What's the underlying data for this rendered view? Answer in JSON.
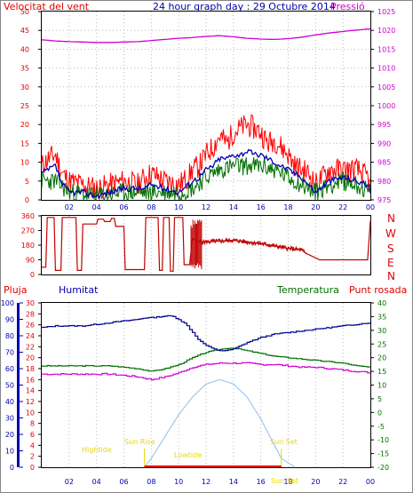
{
  "header": {
    "wind_title": "Velocitat del vent",
    "graph_title": "24 hour graph day : 29 Octubre 2014",
    "pressure_title": "Pressió"
  },
  "labels": {
    "pluja": "Pluja",
    "humitat": "Humitat",
    "temperatura": "Temperatura",
    "punt_rosada": "Punt rosada"
  },
  "colors": {
    "wind_gust": "#ff0000",
    "wind_avg": "#0000b0",
    "wind_low": "#007000",
    "pressure": "#d000d0",
    "direction": "#c00000",
    "humidity": "#000090",
    "temperature": "#007000",
    "dewpoint": "#d000d0",
    "solar": "#a0c8f0",
    "rain": "#ff0000",
    "sun_labels": "#e8d800",
    "axis_red": "#e00000",
    "axis_blue": "#0000b0",
    "axis_green": "#007000",
    "axis_magenta": "#d000d0"
  },
  "chart_data": [
    {
      "type": "line",
      "name": "wind_pressure",
      "x_tick_labels": [
        "02",
        "04",
        "06",
        "08",
        "10",
        "12",
        "14",
        "16",
        "18",
        "20",
        "22",
        "00"
      ],
      "ylim_left": [
        0,
        50
      ],
      "y_ticks_left": [
        "0",
        "5",
        "10",
        "15",
        "20",
        "25",
        "30",
        "35",
        "40",
        "45",
        "50"
      ],
      "ylim_right": [
        975,
        1025
      ],
      "y_ticks_right": [
        "975",
        "980",
        "985",
        "990",
        "995",
        "1000",
        "1005",
        "1010",
        "1015",
        "1020",
        "1025"
      ],
      "pressure_series": {
        "x": [
          0,
          1,
          2,
          3,
          4,
          5,
          6,
          7,
          8,
          9,
          10,
          11,
          12,
          13,
          14,
          15,
          16,
          17,
          18,
          19,
          20,
          21,
          22,
          23,
          24
        ],
        "y": [
          1017.5,
          1017.2,
          1017.0,
          1016.9,
          1016.8,
          1016.8,
          1016.9,
          1017.0,
          1017.3,
          1017.6,
          1017.9,
          1018.1,
          1018.4,
          1018.6,
          1018.3,
          1017.9,
          1017.7,
          1017.6,
          1017.8,
          1018.2,
          1018.8,
          1019.3,
          1019.7,
          1020.1,
          1020.4
        ]
      },
      "wind_gust_profile": {
        "x": [
          0,
          0.5,
          1,
          1.5,
          2,
          3,
          4,
          5,
          6,
          7,
          7.5,
          8,
          9,
          10,
          10.7,
          11,
          11.5,
          12,
          12.5,
          13,
          13.5,
          14,
          14.5,
          15,
          15.5,
          16,
          16.5,
          17,
          17.5,
          18,
          18.5,
          19,
          19.5,
          20,
          21,
          22,
          23,
          23.8,
          24
        ],
        "y": [
          9,
          11,
          12,
          7,
          5,
          4,
          3,
          4,
          5,
          4,
          6,
          7,
          5,
          4,
          6,
          8,
          9,
          12,
          14,
          17,
          15,
          18,
          19,
          20,
          19,
          18,
          15,
          16,
          14,
          12,
          9,
          8,
          7,
          4,
          8,
          8,
          8,
          6,
          3
        ]
      },
      "wind_avg_profile": {
        "x": [
          0,
          0.5,
          1,
          1.5,
          2,
          3,
          4,
          5,
          6,
          7,
          7.5,
          8,
          9,
          10,
          10.7,
          11,
          11.5,
          12,
          12.5,
          13,
          13.5,
          14,
          14.5,
          15,
          15.5,
          16,
          16.5,
          17,
          17.5,
          18,
          18.5,
          19,
          19.5,
          20,
          21,
          22,
          23,
          23.8,
          24
        ],
        "y": [
          7,
          8,
          9,
          4,
          2,
          2,
          1,
          2,
          3,
          3,
          3,
          4,
          3,
          2,
          4,
          5,
          6,
          8,
          9,
          11,
          11,
          12,
          12,
          13,
          12,
          12,
          11,
          10,
          9,
          8,
          7,
          6,
          4,
          2,
          5,
          6,
          5,
          4,
          2
        ]
      },
      "wind_low_profile": {
        "x": [
          0,
          1,
          2,
          4,
          6,
          8,
          9,
          10,
          11,
          12,
          12.5,
          13,
          14,
          15,
          16,
          17,
          18,
          19,
          20,
          21,
          22,
          23,
          24
        ],
        "y": [
          5,
          5,
          2,
          1,
          2,
          2,
          2,
          2,
          3,
          6,
          7,
          8,
          9,
          9,
          9,
          8,
          6,
          4,
          2,
          4,
          5,
          4,
          2
        ]
      }
    },
    {
      "type": "line",
      "name": "wind_direction",
      "ylim": [
        0,
        360
      ],
      "y_ticks": [
        "0",
        "90",
        "180",
        "270",
        "360"
      ],
      "compass_labels": [
        "N",
        "W",
        "S",
        "E",
        "N"
      ],
      "x": [
        0,
        0.3,
        0.4,
        0.9,
        1.0,
        1.4,
        1.5,
        2.5,
        2.6,
        2.9,
        3.0,
        4.0,
        4.1,
        4.5,
        4.6,
        5.0,
        5.1,
        5.3,
        5.4,
        6.0,
        6.1,
        7.5,
        7.6,
        8.5,
        8.6,
        8.8,
        8.9,
        9.3,
        9.4,
        9.6,
        9.7,
        10.3,
        10.4,
        10.8,
        11.0,
        11.5,
        12,
        13,
        14,
        15,
        16,
        17,
        18,
        19,
        19.3,
        20.3,
        23.8,
        24
      ],
      "y": [
        45,
        45,
        350,
        350,
        25,
        25,
        350,
        350,
        25,
        25,
        310,
        310,
        340,
        340,
        325,
        325,
        345,
        345,
        295,
        295,
        30,
        30,
        350,
        350,
        25,
        25,
        350,
        350,
        20,
        20,
        350,
        350,
        60,
        60,
        220,
        200,
        200,
        205,
        210,
        200,
        190,
        175,
        160,
        150,
        130,
        90,
        90,
        330
      ]
    },
    {
      "type": "line",
      "name": "weather",
      "y_ticks_humidity": [
        "0",
        "10",
        "20",
        "30",
        "40",
        "50",
        "60",
        "70",
        "80",
        "90",
        "100"
      ],
      "ylim_humidity": [
        0,
        100
      ],
      "y_ticks_rain": [
        "0",
        "2",
        "4",
        "6",
        "8",
        "10",
        "12",
        "14",
        "16",
        "18",
        "20",
        "22",
        "24",
        "26",
        "28",
        "30"
      ],
      "ylim_rain": [
        0,
        30
      ],
      "y_ticks_temp": [
        "-20",
        "-15",
        "-10",
        "-5",
        "0",
        "5",
        "10",
        "15",
        "20",
        "25",
        "30",
        "35",
        "40"
      ],
      "ylim_temp": [
        -20,
        40
      ],
      "humidity": {
        "x": [
          0,
          1,
          2,
          3,
          4,
          5,
          6,
          7,
          7.5,
          8,
          9,
          9.5,
          10,
          10.5,
          11,
          11.5,
          12,
          12.5,
          13,
          13.5,
          14,
          14.5,
          15,
          16,
          17,
          18,
          19,
          20,
          21,
          22,
          23,
          24
        ],
        "y": [
          85,
          86,
          86,
          86,
          87,
          88,
          89,
          90,
          91,
          91,
          92,
          92,
          90,
          87,
          82,
          77,
          74,
          72,
          71,
          71,
          72,
          74,
          76,
          79,
          81,
          82,
          83,
          84,
          85,
          86,
          87,
          88
        ]
      },
      "temperature": {
        "x": [
          0,
          1,
          2,
          3,
          4,
          5,
          6,
          7,
          7.5,
          8,
          9,
          10,
          11,
          12,
          13,
          13.5,
          14,
          14.5,
          15,
          16,
          17,
          18,
          19,
          20,
          21,
          22,
          23,
          24
        ],
        "y": [
          17,
          17,
          17,
          17,
          17,
          17,
          16.5,
          16,
          15.5,
          15,
          16,
          17.5,
          20,
          22,
          23,
          23.5,
          23.5,
          23,
          22.5,
          21.5,
          20.5,
          20,
          19.5,
          19,
          18.5,
          18,
          17,
          16.5
        ]
      },
      "dewpoint": {
        "x": [
          0,
          1,
          2,
          3,
          4,
          5,
          6,
          7,
          7.5,
          8,
          9,
          10,
          11,
          12,
          13,
          14,
          15,
          16,
          17,
          18,
          19,
          20,
          21,
          22,
          23,
          24
        ],
        "y": [
          14,
          14,
          14,
          14,
          14,
          14,
          13.5,
          13,
          12.5,
          12,
          13,
          14.5,
          16.5,
          17.5,
          18,
          18,
          18,
          17.5,
          17.5,
          17,
          16.5,
          16.5,
          16,
          15.5,
          15,
          14.5
        ]
      },
      "solar": {
        "x": [
          7.5,
          8,
          9,
          10,
          11,
          12,
          13,
          14,
          15,
          16,
          17,
          17.5,
          18.5
        ],
        "y": [
          0,
          2,
          7,
          12,
          16,
          19,
          20,
          19,
          16,
          11,
          5,
          2,
          0
        ]
      },
      "sun_annotations": [
        "Sun Rise",
        "Sun Set",
        "Sun Set",
        "Lowtide",
        "Hightide"
      ]
    }
  ]
}
